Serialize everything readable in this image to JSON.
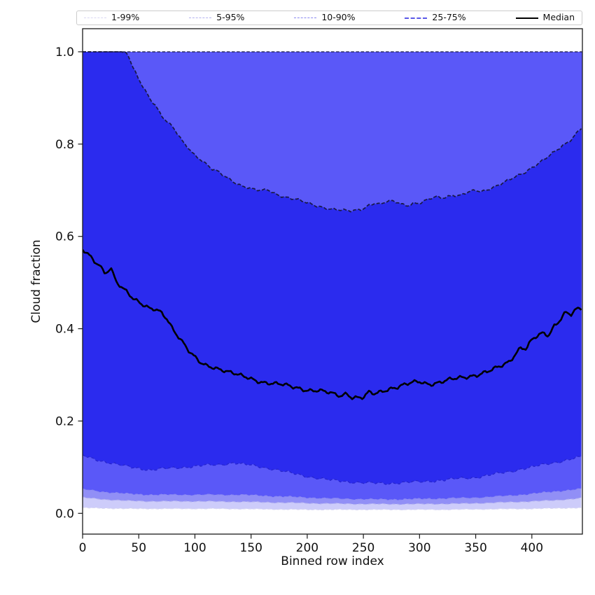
{
  "figure": {
    "legend": [
      {
        "label": "1-99%",
        "style": "dashed",
        "color": "#d9d8f2",
        "width": 1.2
      },
      {
        "label": "5-95%",
        "style": "dashed",
        "color": "#b3b2ef",
        "width": 1.2
      },
      {
        "label": "10-90%",
        "style": "dashed",
        "color": "#8a89f0",
        "width": 1.5
      },
      {
        "label": "25-75%",
        "style": "dashed",
        "color": "#5a58e8",
        "width": 2
      },
      {
        "label": "Median",
        "style": "solid",
        "color": "#000000",
        "width": 2.6
      }
    ]
  },
  "chart_data": {
    "type": "area",
    "title": "",
    "xlabel": "Binned row index",
    "ylabel": "Cloud fraction",
    "xlim": [
      0,
      445
    ],
    "ylim": [
      -0.045,
      1.05
    ],
    "xticks": [
      0,
      50,
      100,
      150,
      200,
      250,
      300,
      350,
      400
    ],
    "yticks": [
      0.0,
      0.2,
      0.4,
      0.6,
      0.8,
      1.0
    ],
    "grid": false,
    "legend_position": "top",
    "axis_color": "#1a1a1a",
    "top_line": {
      "y": 1.0,
      "color": "#191944",
      "style": "dashed"
    },
    "bands": [
      {
        "name": "1-99%",
        "fill": "#cdccfa",
        "edge": "#d9d8f2",
        "upper_const": 1.0,
        "noise": 0.001,
        "lower": [
          [
            0,
            0.012
          ],
          [
            40,
            0.01
          ],
          [
            80,
            0.01
          ],
          [
            120,
            0.01
          ],
          [
            160,
            0.009
          ],
          [
            200,
            0.008
          ],
          [
            240,
            0.008
          ],
          [
            280,
            0.008
          ],
          [
            320,
            0.008
          ],
          [
            360,
            0.009
          ],
          [
            400,
            0.01
          ],
          [
            445,
            0.012
          ]
        ]
      },
      {
        "name": "5-95%",
        "fill": "#918ff6",
        "edge": "#b3b2ef",
        "upper_const": 1.0,
        "noise": 0.0015,
        "lower": [
          [
            0,
            0.034
          ],
          [
            20,
            0.03
          ],
          [
            40,
            0.027
          ],
          [
            60,
            0.026
          ],
          [
            80,
            0.026
          ],
          [
            100,
            0.026
          ],
          [
            140,
            0.025
          ],
          [
            180,
            0.023
          ],
          [
            220,
            0.021
          ],
          [
            260,
            0.02
          ],
          [
            300,
            0.02
          ],
          [
            340,
            0.021
          ],
          [
            380,
            0.024
          ],
          [
            420,
            0.028
          ],
          [
            445,
            0.033
          ]
        ]
      },
      {
        "name": "10-90%",
        "fill": "#5a58f8",
        "edge": "#8a89f0",
        "upper_const": 1.0,
        "noise": 0.002,
        "lower": [
          [
            0,
            0.052
          ],
          [
            20,
            0.046
          ],
          [
            40,
            0.042
          ],
          [
            60,
            0.04
          ],
          [
            80,
            0.04
          ],
          [
            100,
            0.04
          ],
          [
            120,
            0.04
          ],
          [
            140,
            0.04
          ],
          [
            160,
            0.038
          ],
          [
            180,
            0.036
          ],
          [
            200,
            0.034
          ],
          [
            220,
            0.032
          ],
          [
            240,
            0.031
          ],
          [
            260,
            0.03
          ],
          [
            280,
            0.03
          ],
          [
            300,
            0.031
          ],
          [
            320,
            0.032
          ],
          [
            340,
            0.033
          ],
          [
            360,
            0.035
          ],
          [
            380,
            0.038
          ],
          [
            400,
            0.042
          ],
          [
            420,
            0.047
          ],
          [
            445,
            0.053
          ]
        ]
      },
      {
        "name": "25-75%",
        "fill": "#2b2bee",
        "edge": "#191944",
        "lower_edge": "#2523c9",
        "noise": 0.004,
        "lower": [
          [
            0,
            0.125
          ],
          [
            10,
            0.118
          ],
          [
            20,
            0.112
          ],
          [
            30,
            0.106
          ],
          [
            40,
            0.101
          ],
          [
            50,
            0.098
          ],
          [
            60,
            0.094
          ],
          [
            70,
            0.096
          ],
          [
            80,
            0.098
          ],
          [
            90,
            0.1
          ],
          [
            100,
            0.102
          ],
          [
            110,
            0.104
          ],
          [
            120,
            0.105
          ],
          [
            130,
            0.108
          ],
          [
            135,
            0.11
          ],
          [
            140,
            0.107
          ],
          [
            150,
            0.104
          ],
          [
            160,
            0.1
          ],
          [
            170,
            0.096
          ],
          [
            180,
            0.09
          ],
          [
            190,
            0.085
          ],
          [
            200,
            0.08
          ],
          [
            210,
            0.076
          ],
          [
            220,
            0.072
          ],
          [
            230,
            0.07
          ],
          [
            240,
            0.068
          ],
          [
            250,
            0.066
          ],
          [
            260,
            0.065
          ],
          [
            270,
            0.065
          ],
          [
            280,
            0.066
          ],
          [
            290,
            0.067
          ],
          [
            300,
            0.068
          ],
          [
            310,
            0.07
          ],
          [
            320,
            0.072
          ],
          [
            330,
            0.074
          ],
          [
            340,
            0.076
          ],
          [
            350,
            0.078
          ],
          [
            360,
            0.082
          ],
          [
            370,
            0.086
          ],
          [
            380,
            0.09
          ],
          [
            390,
            0.096
          ],
          [
            400,
            0.1
          ],
          [
            410,
            0.105
          ],
          [
            420,
            0.11
          ],
          [
            430,
            0.115
          ],
          [
            440,
            0.12
          ],
          [
            445,
            0.122
          ]
        ],
        "upper": [
          [
            0,
            1.0
          ],
          [
            35,
            1.0
          ],
          [
            40,
            0.995
          ],
          [
            45,
            0.965
          ],
          [
            50,
            0.938
          ],
          [
            55,
            0.92
          ],
          [
            60,
            0.897
          ],
          [
            65,
            0.886
          ],
          [
            70,
            0.862
          ],
          [
            75,
            0.85
          ],
          [
            80,
            0.836
          ],
          [
            85,
            0.82
          ],
          [
            90,
            0.801
          ],
          [
            95,
            0.79
          ],
          [
            100,
            0.776
          ],
          [
            105,
            0.768
          ],
          [
            110,
            0.757
          ],
          [
            115,
            0.746
          ],
          [
            120,
            0.74
          ],
          [
            125,
            0.732
          ],
          [
            130,
            0.725
          ],
          [
            135,
            0.718
          ],
          [
            140,
            0.712
          ],
          [
            145,
            0.708
          ],
          [
            150,
            0.703
          ],
          [
            155,
            0.7
          ],
          [
            160,
            0.698
          ],
          [
            165,
            0.701
          ],
          [
            170,
            0.694
          ],
          [
            175,
            0.69
          ],
          [
            180,
            0.686
          ],
          [
            185,
            0.683
          ],
          [
            190,
            0.68
          ],
          [
            195,
            0.676
          ],
          [
            200,
            0.672
          ],
          [
            205,
            0.669
          ],
          [
            210,
            0.666
          ],
          [
            215,
            0.663
          ],
          [
            220,
            0.66
          ],
          [
            225,
            0.658
          ],
          [
            230,
            0.656
          ],
          [
            235,
            0.655
          ],
          [
            240,
            0.655
          ],
          [
            245,
            0.658
          ],
          [
            250,
            0.661
          ],
          [
            255,
            0.668
          ],
          [
            260,
            0.672
          ],
          [
            265,
            0.668
          ],
          [
            270,
            0.674
          ],
          [
            275,
            0.676
          ],
          [
            280,
            0.675
          ],
          [
            285,
            0.67
          ],
          [
            290,
            0.668
          ],
          [
            295,
            0.672
          ],
          [
            300,
            0.671
          ],
          [
            305,
            0.676
          ],
          [
            310,
            0.682
          ],
          [
            315,
            0.686
          ],
          [
            320,
            0.684
          ],
          [
            325,
            0.687
          ],
          [
            330,
            0.69
          ],
          [
            335,
            0.687
          ],
          [
            340,
            0.692
          ],
          [
            345,
            0.696
          ],
          [
            350,
            0.7
          ],
          [
            355,
            0.697
          ],
          [
            360,
            0.702
          ],
          [
            365,
            0.706
          ],
          [
            370,
            0.711
          ],
          [
            375,
            0.716
          ],
          [
            380,
            0.722
          ],
          [
            385,
            0.728
          ],
          [
            390,
            0.735
          ],
          [
            395,
            0.741
          ],
          [
            400,
            0.75
          ],
          [
            405,
            0.757
          ],
          [
            410,
            0.765
          ],
          [
            415,
            0.773
          ],
          [
            420,
            0.782
          ],
          [
            425,
            0.792
          ],
          [
            430,
            0.801
          ],
          [
            435,
            0.811
          ],
          [
            440,
            0.825
          ],
          [
            445,
            0.838
          ]
        ]
      }
    ],
    "median": {
      "name": "Median",
      "color": "#000000",
      "width": 2.6,
      "noise": 0.006,
      "points": [
        [
          0,
          0.57
        ],
        [
          5,
          0.562
        ],
        [
          10,
          0.548
        ],
        [
          15,
          0.54
        ],
        [
          20,
          0.52
        ],
        [
          25,
          0.532
        ],
        [
          30,
          0.5
        ],
        [
          35,
          0.487
        ],
        [
          40,
          0.478
        ],
        [
          45,
          0.466
        ],
        [
          50,
          0.46
        ],
        [
          55,
          0.452
        ],
        [
          60,
          0.444
        ],
        [
          65,
          0.441
        ],
        [
          70,
          0.433
        ],
        [
          75,
          0.42
        ],
        [
          80,
          0.4
        ],
        [
          85,
          0.385
        ],
        [
          90,
          0.37
        ],
        [
          95,
          0.352
        ],
        [
          100,
          0.338
        ],
        [
          105,
          0.325
        ],
        [
          110,
          0.318
        ],
        [
          115,
          0.316
        ],
        [
          120,
          0.314
        ],
        [
          125,
          0.312
        ],
        [
          130,
          0.308
        ],
        [
          135,
          0.304
        ],
        [
          140,
          0.298
        ],
        [
          145,
          0.294
        ],
        [
          150,
          0.29
        ],
        [
          155,
          0.287
        ],
        [
          160,
          0.285
        ],
        [
          165,
          0.284
        ],
        [
          170,
          0.282
        ],
        [
          175,
          0.28
        ],
        [
          180,
          0.277
        ],
        [
          185,
          0.274
        ],
        [
          190,
          0.272
        ],
        [
          195,
          0.27
        ],
        [
          200,
          0.268
        ],
        [
          205,
          0.267
        ],
        [
          210,
          0.266
        ],
        [
          215,
          0.263
        ],
        [
          220,
          0.26
        ],
        [
          225,
          0.257
        ],
        [
          230,
          0.255
        ],
        [
          235,
          0.261
        ],
        [
          240,
          0.252
        ],
        [
          245,
          0.251
        ],
        [
          250,
          0.25
        ],
        [
          255,
          0.261
        ],
        [
          260,
          0.258
        ],
        [
          265,
          0.263
        ],
        [
          270,
          0.268
        ],
        [
          275,
          0.272
        ],
        [
          280,
          0.274
        ],
        [
          285,
          0.277
        ],
        [
          290,
          0.28
        ],
        [
          295,
          0.283
        ],
        [
          300,
          0.285
        ],
        [
          305,
          0.282
        ],
        [
          310,
          0.281
        ],
        [
          315,
          0.283
        ],
        [
          320,
          0.285
        ],
        [
          325,
          0.288
        ],
        [
          330,
          0.29
        ],
        [
          335,
          0.293
        ],
        [
          340,
          0.295
        ],
        [
          345,
          0.298
        ],
        [
          350,
          0.3
        ],
        [
          355,
          0.303
        ],
        [
          360,
          0.306
        ],
        [
          365,
          0.31
        ],
        [
          370,
          0.316
        ],
        [
          375,
          0.322
        ],
        [
          380,
          0.33
        ],
        [
          385,
          0.345
        ],
        [
          390,
          0.36
        ],
        [
          395,
          0.356
        ],
        [
          400,
          0.375
        ],
        [
          405,
          0.383
        ],
        [
          410,
          0.39
        ],
        [
          415,
          0.386
        ],
        [
          420,
          0.408
        ],
        [
          425,
          0.42
        ],
        [
          430,
          0.436
        ],
        [
          435,
          0.43
        ],
        [
          440,
          0.441
        ],
        [
          445,
          0.443
        ]
      ]
    }
  }
}
